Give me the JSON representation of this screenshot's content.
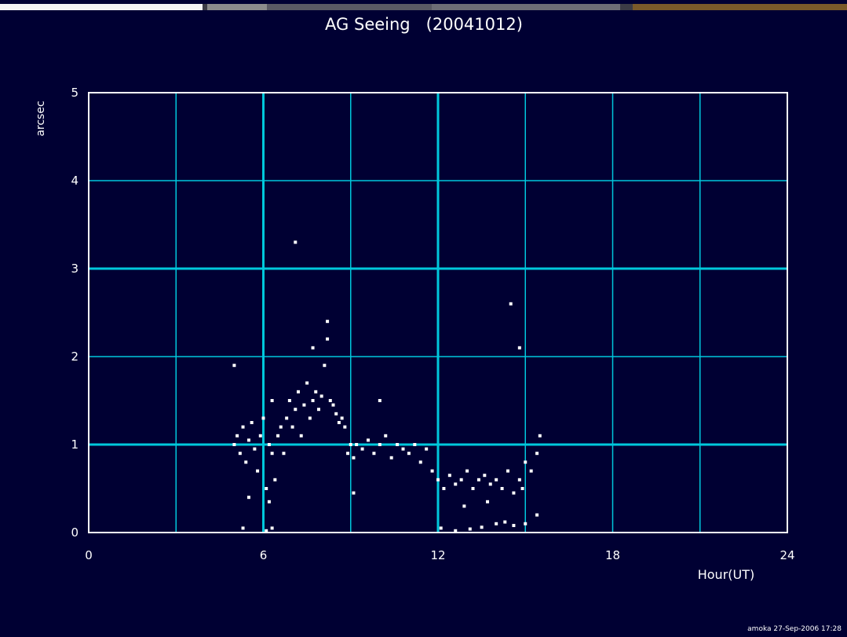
{
  "chart_data": {
    "type": "scatter",
    "title": "AG Seeing   (20041012)",
    "xlabel": "Hour(UT)",
    "ylabel": "arcsec",
    "xlim": [
      0,
      24
    ],
    "ylim": [
      0,
      5
    ],
    "xticks": [
      0,
      6,
      12,
      18,
      24
    ],
    "yticks": [
      0,
      1,
      2,
      3,
      4,
      5
    ],
    "grid": true,
    "colors": {
      "background": "#000033",
      "grid": "#00c8dc",
      "points": "#ffffff",
      "frame": "#ffffff"
    },
    "series": [
      {
        "values": [
          [
            5.0,
            1.0
          ],
          [
            5.1,
            1.1
          ],
          [
            5.2,
            0.9
          ],
          [
            5.3,
            1.2
          ],
          [
            5.4,
            0.8
          ],
          [
            5.5,
            1.05
          ],
          [
            5.6,
            1.25
          ],
          [
            5.7,
            0.95
          ],
          [
            5.8,
            0.7
          ],
          [
            5.9,
            1.1
          ],
          [
            6.0,
            1.3
          ],
          [
            6.1,
            0.5
          ],
          [
            6.2,
            1.0
          ],
          [
            6.3,
            0.9
          ],
          [
            6.4,
            0.6
          ],
          [
            6.5,
            1.1
          ],
          [
            6.6,
            1.2
          ],
          [
            6.7,
            0.9
          ],
          [
            6.8,
            1.3
          ],
          [
            6.9,
            1.5
          ],
          [
            7.0,
            1.2
          ],
          [
            7.1,
            1.4
          ],
          [
            7.2,
            1.6
          ],
          [
            7.3,
            1.1
          ],
          [
            7.4,
            1.45
          ],
          [
            7.5,
            1.7
          ],
          [
            7.6,
            1.3
          ],
          [
            7.7,
            1.5
          ],
          [
            7.8,
            1.6
          ],
          [
            7.9,
            1.4
          ],
          [
            8.0,
            1.55
          ],
          [
            8.1,
            1.9
          ],
          [
            8.2,
            2.2
          ],
          [
            8.3,
            1.5
          ],
          [
            8.4,
            1.45
          ],
          [
            8.5,
            1.35
          ],
          [
            8.6,
            1.25
          ],
          [
            8.7,
            1.3
          ],
          [
            8.8,
            1.2
          ],
          [
            8.9,
            0.9
          ],
          [
            9.0,
            1.0
          ],
          [
            9.1,
            0.85
          ],
          [
            9.2,
            1.0
          ],
          [
            9.4,
            0.95
          ],
          [
            9.6,
            1.05
          ],
          [
            9.8,
            0.9
          ],
          [
            10.0,
            1.0
          ],
          [
            10.2,
            1.1
          ],
          [
            10.4,
            0.85
          ],
          [
            10.6,
            1.0
          ],
          [
            10.8,
            0.95
          ],
          [
            11.0,
            0.9
          ],
          [
            11.2,
            1.0
          ],
          [
            11.4,
            0.8
          ],
          [
            11.6,
            0.95
          ],
          [
            11.8,
            0.7
          ],
          [
            12.0,
            0.6
          ],
          [
            12.2,
            0.5
          ],
          [
            12.4,
            0.65
          ],
          [
            12.6,
            0.55
          ],
          [
            12.8,
            0.6
          ],
          [
            13.0,
            0.7
          ],
          [
            13.2,
            0.5
          ],
          [
            13.4,
            0.6
          ],
          [
            13.6,
            0.65
          ],
          [
            13.8,
            0.55
          ],
          [
            14.0,
            0.6
          ],
          [
            14.2,
            0.5
          ],
          [
            14.4,
            0.7
          ],
          [
            14.6,
            0.45
          ],
          [
            14.8,
            0.6
          ],
          [
            15.0,
            0.8
          ],
          [
            15.2,
            0.7
          ],
          [
            15.4,
            0.9
          ],
          [
            15.5,
            1.1
          ],
          [
            5.0,
            1.9
          ],
          [
            6.3,
            1.5
          ],
          [
            7.1,
            3.3
          ],
          [
            7.7,
            2.1
          ],
          [
            8.2,
            2.4
          ],
          [
            10.0,
            1.5
          ],
          [
            14.5,
            2.6
          ],
          [
            14.8,
            2.1
          ],
          [
            5.3,
            0.05
          ],
          [
            6.1,
            0.02
          ],
          [
            6.3,
            0.05
          ],
          [
            12.1,
            0.05
          ],
          [
            12.6,
            0.02
          ],
          [
            13.1,
            0.04
          ],
          [
            13.5,
            0.06
          ],
          [
            14.0,
            0.1
          ],
          [
            14.3,
            0.12
          ],
          [
            14.6,
            0.08
          ],
          [
            15.0,
            0.1
          ],
          [
            15.4,
            0.2
          ],
          [
            5.5,
            0.4
          ],
          [
            6.2,
            0.35
          ],
          [
            9.1,
            0.45
          ],
          [
            12.9,
            0.3
          ],
          [
            13.7,
            0.35
          ],
          [
            14.9,
            0.5
          ]
        ]
      }
    ],
    "footer": "amoka 27-Sep-2006 17:28"
  }
}
